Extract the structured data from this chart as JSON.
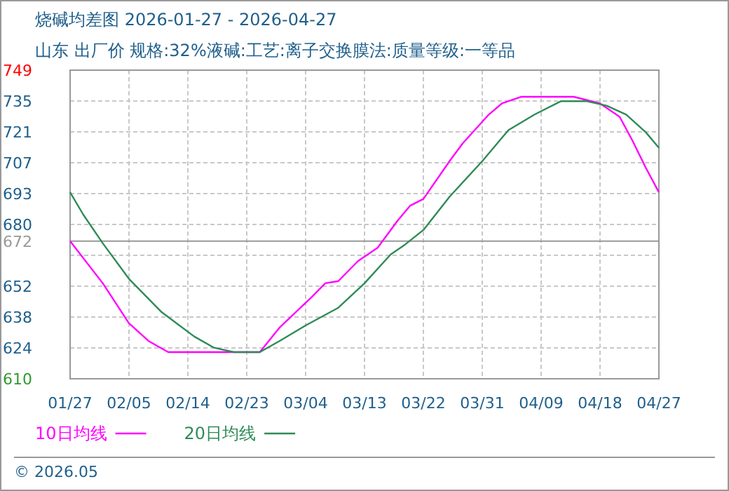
{
  "chart_data": {
    "type": "line",
    "title": "烧碱均差图  2026-01-27 - 2026-04-27",
    "subtitle": "山东  出厂价  规格:32%液碱:工艺:离子交换膜法:质量等级:一等品",
    "xlim": [
      "2026-01-27",
      "2026-04-27"
    ],
    "xticks": [
      {
        "value": "2026-01-27",
        "label": "01/27"
      },
      {
        "value": "2026-02-05",
        "label": "02/05"
      },
      {
        "value": "2026-02-14",
        "label": "02/14"
      },
      {
        "value": "2026-02-23",
        "label": "02/23"
      },
      {
        "value": "2026-03-04",
        "label": "03/04"
      },
      {
        "value": "2026-03-13",
        "label": "03/13"
      },
      {
        "value": "2026-03-22",
        "label": "03/22"
      },
      {
        "value": "2026-03-31",
        "label": "03/31"
      },
      {
        "value": "2026-04-09",
        "label": "04/09"
      },
      {
        "value": "2026-04-18",
        "label": "04/18"
      },
      {
        "value": "2026-04-27",
        "label": "04/27"
      }
    ],
    "ylim": [
      610,
      749
    ],
    "yticks": [
      610,
      {
        "value": 623.9,
        "label": "624"
      },
      {
        "value": 637.8,
        "label": "638"
      },
      {
        "value": 651.7,
        "label": "652"
      },
      {
        "value": 665.6,
        "label": null
      },
      {
        "value": 679.5,
        "label": "680"
      },
      {
        "value": 693.4,
        "label": "693"
      },
      {
        "value": 707.3,
        "label": "707"
      },
      {
        "value": 721.2,
        "label": "721"
      },
      {
        "value": 735.1,
        "label": "735"
      },
      749
    ],
    "grid": true,
    "legend": "bottom",
    "ref_lines": [
      {
        "axis": "y",
        "value": 672,
        "label": "672",
        "color": "#999999"
      }
    ],
    "annotations": [
      "© 2026.05"
    ],
    "series": [
      {
        "name": "10日均线",
        "color": "#ff00ff",
        "x": [
          "2026-01-27",
          "2026-02-01",
          "2026-02-05",
          "2026-02-08",
          "2026-02-11",
          "2026-02-25",
          "2026-02-28",
          "2026-03-05",
          "2026-03-07",
          "2026-03-09",
          "2026-03-12",
          "2026-03-15",
          "2026-03-17",
          "2026-03-18",
          "2026-03-20",
          "2026-03-22",
          "2026-03-26",
          "2026-03-28",
          "2026-04-01",
          "2026-04-03",
          "2026-04-06",
          "2026-04-08",
          "2026-04-14",
          "2026-04-18",
          "2026-04-21",
          "2026-04-23",
          "2026-04-25",
          "2026-04-27"
        ],
        "values": [
          672,
          653,
          635,
          627,
          622,
          622,
          633,
          647,
          653,
          654,
          663,
          669,
          677,
          681,
          688,
          691,
          708,
          716,
          729,
          734,
          737,
          737,
          737,
          734,
          728,
          717,
          705,
          694
        ]
      },
      {
        "name": "20日均线",
        "color": "#2e8b57",
        "x": [
          "2026-01-27",
          "2026-01-29",
          "2026-02-01",
          "2026-02-05",
          "2026-02-10",
          "2026-02-15",
          "2026-02-18",
          "2026-02-21",
          "2026-02-25",
          "2026-02-28",
          "2026-03-04",
          "2026-03-09",
          "2026-03-13",
          "2026-03-17",
          "2026-03-19",
          "2026-03-22",
          "2026-03-26",
          "2026-03-31",
          "2026-04-04",
          "2026-04-08",
          "2026-04-12",
          "2026-04-16",
          "2026-04-19",
          "2026-04-22",
          "2026-04-25",
          "2026-04-27"
        ],
        "values": [
          694,
          684,
          671,
          655,
          640,
          629,
          624,
          622,
          622,
          627,
          634,
          642,
          653,
          666,
          670,
          677,
          692,
          708,
          722,
          729,
          735,
          735,
          733,
          729,
          721,
          714
        ]
      }
    ]
  }
}
